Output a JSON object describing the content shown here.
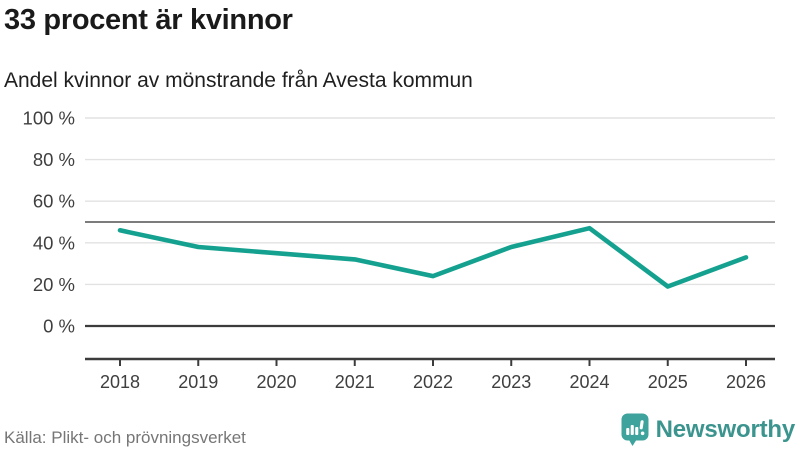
{
  "header": {
    "title": "33 procent är kvinnor",
    "subtitle": "Andel kvinnor av mönstrande från Avesta kommun"
  },
  "chart_data": {
    "type": "line",
    "title": "33 procent är kvinnor",
    "subtitle": "Andel kvinnor av mönstrande från Avesta kommun",
    "x": [
      2018,
      2019,
      2020,
      2021,
      2022,
      2023,
      2024,
      2025,
      2026
    ],
    "series": [
      {
        "name": "Andel kvinnor av mönstrande från Avesta kommun",
        "values": [
          46,
          38,
          35,
          32,
          24,
          38,
          47,
          19,
          33
        ]
      }
    ],
    "xlabel": "",
    "ylabel": "",
    "ylim": [
      0,
      100
    ],
    "ytick_values": [
      100,
      80,
      60,
      40,
      20,
      0
    ],
    "ytick_labels": [
      "100 %",
      "80 %",
      "60 %",
      "40 %",
      "20 %",
      "0 %"
    ],
    "reference_line_value": 50,
    "grid": true,
    "legend_position": "none",
    "colors": {
      "line": "#15a18f",
      "grid_light": "#e2e2e2",
      "reference_line": "#7c7c7c",
      "zero_line": "#3c3c3c",
      "axis": "#3c3c3c",
      "tick_label": "#3f3f3f"
    }
  },
  "footer": {
    "source": "Källa: Plikt- och prövningsverket",
    "brand": "Newsworthy",
    "brand_icon": "newsworthy-bubble-chart-icon",
    "brand_color": "#3b948e",
    "brand_icon_color": "#3da39c"
  }
}
